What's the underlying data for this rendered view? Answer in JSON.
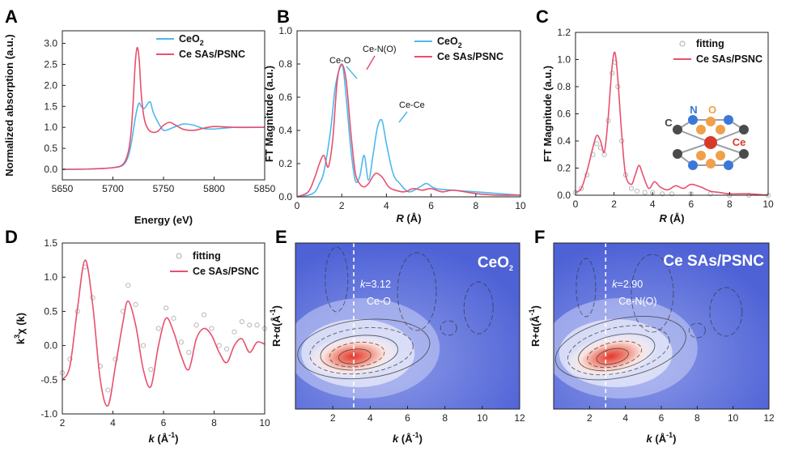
{
  "panel_labels": [
    "A",
    "B",
    "C",
    "D",
    "E",
    "F"
  ],
  "colors": {
    "ceo2": "#4db8ec",
    "ce_sas": "#e8506e",
    "fitting": "#b8b8b8",
    "wt_bg": "#5b6fd8"
  },
  "chart_data": [
    {
      "id": "A",
      "type": "line",
      "xlabel": "Energy (eV)",
      "ylabel": "Normalized absorption (a.u.)",
      "xlim": [
        5650,
        5850
      ],
      "ylim": [
        -0.25,
        3.3
      ],
      "xticks": [
        "5650",
        "5700",
        "5750",
        "5800",
        "5850"
      ],
      "yticks": [
        "0.0",
        "0.5",
        "1.0",
        "1.5",
        "2.0",
        "2.5",
        "3.0"
      ],
      "legend": {
        "position": "top-right",
        "entries": [
          "CeO2",
          "Ce SAs/PSNC"
        ]
      },
      "series": [
        {
          "name": "CeO2",
          "color": "#4db8ec",
          "x": [
            5650,
            5680,
            5700,
            5710,
            5715,
            5718,
            5720,
            5722,
            5724,
            5726,
            5728,
            5731,
            5734,
            5737,
            5740,
            5745,
            5750,
            5755,
            5760,
            5770,
            5780,
            5790,
            5800,
            5820,
            5850
          ],
          "y": [
            0.0,
            0.01,
            0.04,
            0.1,
            0.3,
            0.6,
            0.9,
            1.2,
            1.45,
            1.58,
            1.5,
            1.45,
            1.55,
            1.6,
            1.35,
            1.1,
            0.93,
            0.95,
            1.0,
            1.08,
            1.05,
            0.97,
            0.96,
            1.0,
            1.0
          ]
        },
        {
          "name": "Ce SAs/PSNC",
          "color": "#e8506e",
          "x": [
            5650,
            5680,
            5700,
            5710,
            5715,
            5718,
            5720,
            5722,
            5724,
            5726,
            5728,
            5731,
            5735,
            5740,
            5745,
            5750,
            5756,
            5762,
            5770,
            5780,
            5790,
            5800,
            5820,
            5850
          ],
          "y": [
            0.0,
            0.01,
            0.04,
            0.12,
            0.4,
            0.9,
            1.6,
            2.5,
            2.9,
            2.6,
            1.8,
            1.2,
            0.95,
            0.88,
            0.92,
            1.05,
            1.12,
            1.05,
            0.95,
            0.93,
            0.98,
            1.02,
            1.0,
            1.0
          ]
        }
      ]
    },
    {
      "id": "B",
      "type": "line",
      "xlabel": "R (Å)",
      "ylabel": "FT  Magnitude (a.u.)",
      "xlim": [
        0,
        10
      ],
      "ylim": [
        0,
        1.0
      ],
      "xticks": [
        "0",
        "2",
        "4",
        "6",
        "8",
        "10"
      ],
      "yticks": [
        "0.0",
        "0.2",
        "0.4",
        "0.6",
        "0.8",
        "1.0"
      ],
      "legend": {
        "position": "top-right",
        "entries": [
          "CeO2",
          "Ce SAs/PSNC"
        ]
      },
      "annotations": [
        "Ce-O",
        "Ce-N(O)",
        "Ce-Ce"
      ],
      "series": [
        {
          "name": "CeO2",
          "color": "#4db8ec",
          "x": [
            0,
            0.5,
            0.8,
            1.0,
            1.2,
            1.5,
            1.7,
            1.9,
            2.05,
            2.2,
            2.4,
            2.6,
            2.8,
            3.0,
            3.2,
            3.4,
            3.6,
            3.8,
            4.0,
            4.3,
            4.6,
            5.0,
            5.5,
            5.8,
            6.2,
            7.0,
            8.0,
            9.0,
            10.0
          ],
          "y": [
            0.0,
            0.01,
            0.03,
            0.08,
            0.15,
            0.4,
            0.65,
            0.77,
            0.78,
            0.6,
            0.3,
            0.1,
            0.12,
            0.25,
            0.1,
            0.25,
            0.42,
            0.46,
            0.32,
            0.14,
            0.08,
            0.03,
            0.06,
            0.08,
            0.05,
            0.04,
            0.03,
            0.02,
            0.01
          ]
        },
        {
          "name": "Ce SAs/PSNC",
          "color": "#e8506e",
          "x": [
            0,
            0.5,
            0.8,
            1.0,
            1.2,
            1.4,
            1.6,
            1.8,
            2.0,
            2.2,
            2.4,
            2.6,
            2.8,
            3.0,
            3.2,
            3.5,
            3.8,
            4.1,
            4.4,
            4.8,
            5.2,
            5.6,
            6.0,
            6.5,
            7.0,
            8.0,
            9.0,
            10.0
          ],
          "y": [
            0.0,
            0.03,
            0.12,
            0.2,
            0.25,
            0.18,
            0.35,
            0.7,
            0.8,
            0.7,
            0.4,
            0.15,
            0.08,
            0.06,
            0.08,
            0.14,
            0.12,
            0.06,
            0.04,
            0.03,
            0.05,
            0.04,
            0.05,
            0.03,
            0.04,
            0.02,
            0.01,
            0.01
          ]
        }
      ]
    },
    {
      "id": "C",
      "type": "line",
      "xlabel": "R (Å)",
      "ylabel": "FT Magnitude (a.u.)",
      "xlim": [
        0,
        10
      ],
      "ylim": [
        0,
        1.2
      ],
      "xticks": [
        "0",
        "2",
        "4",
        "6",
        "8",
        "10"
      ],
      "yticks": [
        "0.0",
        "0.2",
        "0.4",
        "0.6",
        "0.8",
        "1.0",
        "1.2"
      ],
      "legend": {
        "position": "top-right",
        "entries": [
          "fitting",
          "Ce SAs/PSNC"
        ]
      },
      "inset_atoms": [
        "C",
        "N",
        "O",
        "Ce"
      ],
      "series": [
        {
          "name": "fitting",
          "color": "#b8b8b8",
          "style": "markers",
          "x": [
            0,
            0.3,
            0.6,
            0.9,
            1.1,
            1.3,
            1.5,
            1.7,
            1.9,
            2.05,
            2.2,
            2.4,
            2.6,
            2.9,
            3.2,
            3.6,
            4.0,
            4.5,
            5.0,
            6.0,
            7.0,
            8.0,
            9.0,
            10.0
          ],
          "y": [
            0.02,
            0.05,
            0.15,
            0.3,
            0.38,
            0.35,
            0.3,
            0.55,
            0.9,
            0.98,
            0.8,
            0.4,
            0.15,
            0.05,
            0.03,
            0.02,
            0.02,
            0.01,
            0.01,
            0.01,
            0.01,
            0.0,
            0.0,
            0.0
          ]
        },
        {
          "name": "Ce SAs/PSNC",
          "color": "#e8506e",
          "style": "line",
          "x": [
            0,
            0.3,
            0.6,
            0.9,
            1.1,
            1.3,
            1.5,
            1.7,
            1.9,
            2.05,
            2.2,
            2.4,
            2.6,
            2.9,
            3.1,
            3.3,
            3.5,
            3.8,
            4.1,
            4.4,
            4.8,
            5.2,
            5.6,
            6.0,
            6.5,
            7.0,
            7.5,
            8.0,
            9.0,
            10.0
          ],
          "y": [
            0.02,
            0.05,
            0.18,
            0.35,
            0.44,
            0.4,
            0.32,
            0.58,
            0.95,
            1.05,
            0.85,
            0.45,
            0.15,
            0.08,
            0.15,
            0.22,
            0.15,
            0.05,
            0.1,
            0.06,
            0.04,
            0.07,
            0.05,
            0.08,
            0.06,
            0.03,
            0.02,
            0.01,
            0.01,
            0.0
          ]
        }
      ]
    },
    {
      "id": "D",
      "type": "line",
      "xlabel": "k (Å⁻¹)",
      "ylabel": "k³χ (k)",
      "xlim": [
        2,
        10
      ],
      "ylim": [
        -1.0,
        1.5
      ],
      "xticks": [
        "2",
        "4",
        "6",
        "8",
        "10"
      ],
      "yticks": [
        "-1.0",
        "-0.5",
        "0.0",
        "0.5",
        "1.0",
        "1.5"
      ],
      "legend": {
        "position": "top-right",
        "entries": [
          "fitting",
          "Ce SAs/PSNC"
        ]
      },
      "series": [
        {
          "name": "fitting",
          "color": "#b8b8b8",
          "style": "markers",
          "x": [
            2.0,
            2.3,
            2.6,
            2.9,
            3.2,
            3.5,
            3.8,
            4.1,
            4.4,
            4.6,
            4.9,
            5.2,
            5.5,
            5.8,
            6.1,
            6.4,
            6.7,
            7.0,
            7.3,
            7.6,
            7.9,
            8.2,
            8.5,
            8.8,
            9.1,
            9.4,
            9.7,
            10.0
          ],
          "y": [
            -0.4,
            -0.2,
            0.5,
            1.15,
            0.7,
            -0.3,
            -0.65,
            -0.2,
            0.5,
            0.88,
            0.6,
            0.0,
            -0.35,
            0.25,
            0.55,
            0.4,
            0.05,
            -0.1,
            0.3,
            0.45,
            0.25,
            0.0,
            -0.05,
            0.2,
            0.35,
            0.3,
            0.3,
            0.25
          ]
        },
        {
          "name": "Ce SAs/PSNC",
          "color": "#e8506e",
          "style": "line",
          "x": [
            2.0,
            2.3,
            2.6,
            2.9,
            3.2,
            3.5,
            3.8,
            4.1,
            4.4,
            4.6,
            4.9,
            5.2,
            5.5,
            5.8,
            6.1,
            6.4,
            6.7,
            7.0,
            7.3,
            7.6,
            7.9,
            8.2,
            8.5,
            8.8,
            9.1,
            9.4,
            9.7,
            10.0
          ],
          "y": [
            -0.5,
            -0.3,
            0.55,
            1.25,
            0.6,
            -0.5,
            -0.88,
            -0.3,
            0.35,
            0.65,
            0.3,
            -0.35,
            -0.6,
            0.0,
            0.4,
            0.2,
            -0.15,
            -0.35,
            0.1,
            0.25,
            0.15,
            -0.1,
            -0.25,
            0.0,
            0.1,
            -0.1,
            0.05,
            0.02
          ]
        }
      ]
    },
    {
      "id": "E",
      "type": "heatmap",
      "xlabel": "k (Å⁻¹)",
      "ylabel": "R+α(Å⁻¹)",
      "xlim": [
        0,
        12
      ],
      "xticks": [
        "2",
        "4",
        "6",
        "8",
        "10",
        "12"
      ],
      "title": "CeO2",
      "marker_label": "k=3.12",
      "marker_value": 3.12,
      "bond_label": "Ce-O"
    },
    {
      "id": "F",
      "type": "heatmap",
      "xlabel": "k (Å⁻¹)",
      "ylabel": "R+α(Å⁻¹)",
      "xlim": [
        0,
        12
      ],
      "xticks": [
        "2",
        "4",
        "6",
        "8",
        "10",
        "12"
      ],
      "title": "Ce SAs/PSNC",
      "marker_label": "k=2.90",
      "marker_value": 2.9,
      "bond_label": "Ce-N(O)"
    }
  ]
}
